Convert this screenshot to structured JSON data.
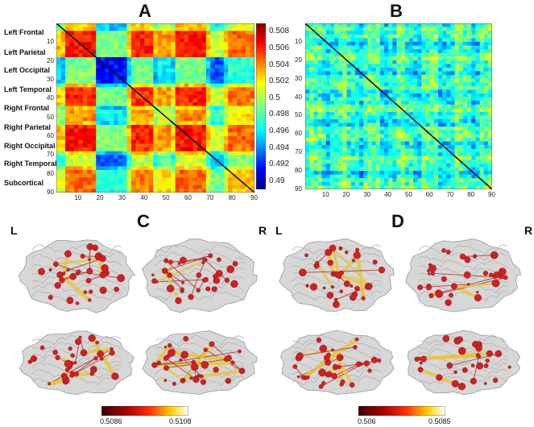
{
  "panels": {
    "a": "A",
    "b": "B",
    "c": "C",
    "d": "D"
  },
  "regions": [
    "Left Frontal",
    "Left Parietal",
    "Left Occipital",
    "Left Temporal",
    "Right Frontal",
    "Right Parietal",
    "Right Occipital",
    "Right Temporal",
    "Subcortical"
  ],
  "matrix_ticks": [
    "10",
    "20",
    "30",
    "40",
    "50",
    "60",
    "70",
    "80",
    "90"
  ],
  "colorbar": {
    "ticks": [
      "0.508",
      "0.506",
      "0.504",
      "0.502",
      "0.5",
      "0.498",
      "0.496",
      "0.494",
      "0.492",
      "0.49"
    ],
    "colormap": "jet",
    "range": [
      0.489,
      0.509
    ]
  },
  "brain_sides": {
    "c_left": "L",
    "c_right": "R",
    "d_left": "L",
    "d_right": "R"
  },
  "brain_colorbars": {
    "c": {
      "min": "0.5086",
      "max": "0.5108"
    },
    "d": {
      "min": "0.506",
      "max": "0.5085"
    }
  },
  "colors": {
    "edge_hot": "#e8c740",
    "node": "#d22020",
    "brain": "#c9c9c9"
  }
}
